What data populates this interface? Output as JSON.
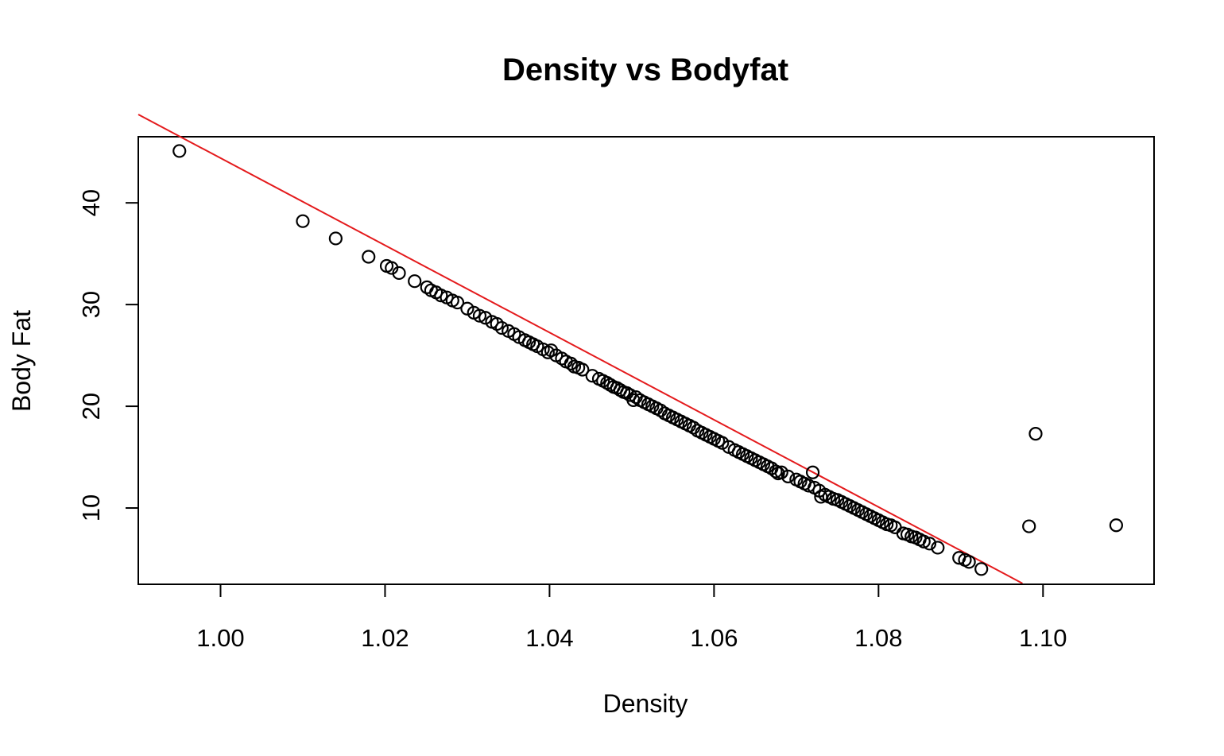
{
  "chart_data": {
    "type": "scatter",
    "title": "Density vs Bodyfat",
    "xlabel": "Density",
    "ylabel": "Body Fat",
    "xlim": [
      0.99,
      1.1135
    ],
    "ylim": [
      2.5,
      46.5
    ],
    "x_ticks": [
      1.0,
      1.02,
      1.04,
      1.06,
      1.08,
      1.1
    ],
    "x_tick_labels": [
      "1.00",
      "1.02",
      "1.04",
      "1.06",
      "1.08",
      "1.10"
    ],
    "y_ticks": [
      10,
      20,
      30,
      40
    ],
    "y_tick_labels": [
      "10",
      "20",
      "30",
      "40"
    ],
    "grid": false,
    "point_color": "#000000",
    "line_color": "#e41a1c",
    "fit_line": {
      "slope": -428.8,
      "intercept": 473.2,
      "x_range": [
        0.99,
        1.0975
      ]
    },
    "series": [
      {
        "points": [
          [
            0.995,
            45.1
          ],
          [
            1.01,
            38.2
          ],
          [
            1.014,
            36.5
          ],
          [
            1.018,
            34.7
          ],
          [
            1.0202,
            33.8
          ],
          [
            1.0208,
            33.6
          ],
          [
            1.0217,
            33.1
          ],
          [
            1.0236,
            32.3
          ],
          [
            1.0251,
            31.7
          ],
          [
            1.0256,
            31.4
          ],
          [
            1.0262,
            31.2
          ],
          [
            1.0268,
            30.9
          ],
          [
            1.0275,
            30.7
          ],
          [
            1.0282,
            30.4
          ],
          [
            1.0288,
            30.2
          ],
          [
            1.03,
            29.6
          ],
          [
            1.0308,
            29.2
          ],
          [
            1.0315,
            28.9
          ],
          [
            1.0322,
            28.7
          ],
          [
            1.033,
            28.3
          ],
          [
            1.0336,
            28.1
          ],
          [
            1.0342,
            27.7
          ],
          [
            1.035,
            27.4
          ],
          [
            1.0357,
            27.1
          ],
          [
            1.0363,
            26.8
          ],
          [
            1.037,
            26.5
          ],
          [
            1.0375,
            26.3
          ],
          [
            1.038,
            26.1
          ],
          [
            1.0385,
            25.9
          ],
          [
            1.0392,
            25.6
          ],
          [
            1.0398,
            25.3
          ],
          [
            1.0402,
            25.5
          ],
          [
            1.0408,
            25.0
          ],
          [
            1.0415,
            24.7
          ],
          [
            1.042,
            24.4
          ],
          [
            1.0426,
            24.2
          ],
          [
            1.043,
            23.9
          ],
          [
            1.0435,
            23.8
          ],
          [
            1.044,
            23.6
          ],
          [
            1.0452,
            23.0
          ],
          [
            1.046,
            22.7
          ],
          [
            1.0465,
            22.5
          ],
          [
            1.047,
            22.3
          ],
          [
            1.0474,
            22.1
          ],
          [
            1.0478,
            21.9
          ],
          [
            1.0482,
            21.8
          ],
          [
            1.0486,
            21.6
          ],
          [
            1.049,
            21.4
          ],
          [
            1.0494,
            21.3
          ],
          [
            1.0498,
            21.1
          ],
          [
            1.0502,
            20.6
          ],
          [
            1.0505,
            20.9
          ],
          [
            1.051,
            20.6
          ],
          [
            1.0515,
            20.4
          ],
          [
            1.052,
            20.2
          ],
          [
            1.0525,
            20.0
          ],
          [
            1.053,
            19.8
          ],
          [
            1.0535,
            19.6
          ],
          [
            1.054,
            19.3
          ],
          [
            1.0545,
            19.1
          ],
          [
            1.055,
            18.9
          ],
          [
            1.0555,
            18.7
          ],
          [
            1.056,
            18.5
          ],
          [
            1.0565,
            18.3
          ],
          [
            1.057,
            18.1
          ],
          [
            1.0575,
            17.9
          ],
          [
            1.058,
            17.6
          ],
          [
            1.0585,
            17.4
          ],
          [
            1.059,
            17.2
          ],
          [
            1.0595,
            17.0
          ],
          [
            1.06,
            16.8
          ],
          [
            1.0605,
            16.6
          ],
          [
            1.061,
            16.4
          ],
          [
            1.0618,
            16.0
          ],
          [
            1.0625,
            15.7
          ],
          [
            1.063,
            15.5
          ],
          [
            1.0635,
            15.3
          ],
          [
            1.064,
            15.1
          ],
          [
            1.0645,
            14.9
          ],
          [
            1.065,
            14.7
          ],
          [
            1.0655,
            14.5
          ],
          [
            1.066,
            14.3
          ],
          [
            1.0665,
            14.1
          ],
          [
            1.067,
            13.9
          ],
          [
            1.0675,
            13.6
          ],
          [
            1.0678,
            13.4
          ],
          [
            1.0682,
            13.5
          ],
          [
            1.069,
            13.1
          ],
          [
            1.07,
            12.8
          ],
          [
            1.0705,
            12.6
          ],
          [
            1.071,
            12.4
          ],
          [
            1.0715,
            12.2
          ],
          [
            1.072,
            13.5
          ],
          [
            1.0722,
            12.0
          ],
          [
            1.0728,
            11.7
          ],
          [
            1.073,
            11.1
          ],
          [
            1.0735,
            11.3
          ],
          [
            1.074,
            11.1
          ],
          [
            1.0745,
            10.9
          ],
          [
            1.075,
            10.8
          ],
          [
            1.0755,
            10.6
          ],
          [
            1.076,
            10.4
          ],
          [
            1.0765,
            10.2
          ],
          [
            1.077,
            10.0
          ],
          [
            1.0775,
            9.8
          ],
          [
            1.078,
            9.6
          ],
          [
            1.0785,
            9.4
          ],
          [
            1.079,
            9.2
          ],
          [
            1.0795,
            9.0
          ],
          [
            1.08,
            8.8
          ],
          [
            1.0805,
            8.6
          ],
          [
            1.081,
            8.4
          ],
          [
            1.0815,
            8.3
          ],
          [
            1.082,
            8.1
          ],
          [
            1.083,
            7.5
          ],
          [
            1.0835,
            7.4
          ],
          [
            1.084,
            7.2
          ],
          [
            1.0845,
            7.1
          ],
          [
            1.085,
            6.9
          ],
          [
            1.0855,
            6.7
          ],
          [
            1.0862,
            6.5
          ],
          [
            1.0872,
            6.1
          ],
          [
            1.0898,
            5.1
          ],
          [
            1.0905,
            4.9
          ],
          [
            1.091,
            4.7
          ],
          [
            1.0925,
            4.0
          ],
          [
            1.0983,
            8.2
          ],
          [
            1.0991,
            17.3
          ],
          [
            1.1089,
            8.3
          ]
        ]
      }
    ]
  }
}
